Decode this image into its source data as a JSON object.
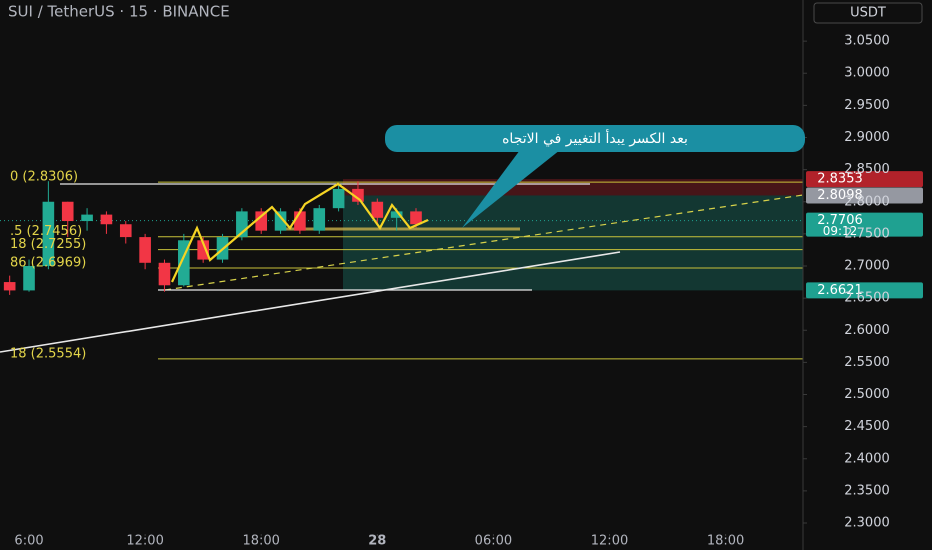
{
  "chart_data": {
    "type": "candlestick",
    "title": "SUI / TetherUS · 15 · BINANCE",
    "currency": "USDT",
    "annotation": "بعد الكسر يبدأ التغيير في الاتجاه",
    "x": [
      5,
      6,
      7,
      8,
      9,
      10,
      11,
      12,
      13,
      14,
      15,
      16,
      17,
      18,
      19,
      20,
      21,
      22,
      23,
      24,
      25,
      26
    ],
    "open": [
      2.675,
      2.662,
      2.7,
      2.8,
      2.77,
      2.78,
      2.765,
      2.745,
      2.705,
      2.67,
      2.74,
      2.71,
      2.745,
      2.785,
      2.755,
      2.785,
      2.755,
      2.79,
      2.82,
      2.8,
      2.775,
      2.785
    ],
    "high": [
      2.685,
      2.71,
      2.832,
      2.8,
      2.79,
      2.785,
      2.77,
      2.75,
      2.71,
      2.75,
      2.745,
      2.75,
      2.79,
      2.79,
      2.79,
      2.79,
      2.795,
      2.825,
      2.832,
      2.805,
      2.79,
      2.79
    ],
    "low": [
      2.655,
      2.66,
      2.695,
      2.745,
      2.755,
      2.75,
      2.735,
      2.695,
      2.66,
      2.668,
      2.705,
      2.705,
      2.74,
      2.75,
      2.75,
      2.75,
      2.75,
      2.785,
      2.795,
      2.765,
      2.755,
      2.76
    ],
    "close": [
      2.662,
      2.7,
      2.8,
      2.77,
      2.78,
      2.765,
      2.745,
      2.705,
      2.67,
      2.74,
      2.71,
      2.745,
      2.785,
      2.755,
      2.785,
      2.755,
      2.79,
      2.82,
      2.8,
      2.775,
      2.785,
      2.765
    ],
    "up_color": "#22ab94",
    "down_color": "#f23645",
    "xlim": [
      4.5,
      46
    ],
    "xticks": [
      {
        "value": 6,
        "label": "6:00"
      },
      {
        "value": 12,
        "label": "12:00"
      },
      {
        "value": 18,
        "label": "18:00"
      },
      {
        "value": 24,
        "label": "28"
      },
      {
        "value": 30,
        "label": "06:00"
      },
      {
        "value": 36,
        "label": "12:00"
      },
      {
        "value": 42,
        "label": "18:00"
      }
    ],
    "ylim": [
      2.258,
      3.114
    ],
    "yticks": [
      {
        "value": 2.3,
        "label": "2.3000"
      },
      {
        "value": 2.35,
        "label": "2.3500"
      },
      {
        "value": 2.4,
        "label": "2.4000"
      },
      {
        "value": 2.45,
        "label": "2.4500"
      },
      {
        "value": 2.5,
        "label": "2.5000"
      },
      {
        "value": 2.55,
        "label": "2.5500"
      },
      {
        "value": 2.6,
        "label": "2.6000"
      },
      {
        "value": 2.65,
        "label": "2.6500"
      },
      {
        "value": 2.7,
        "label": "2.7000"
      },
      {
        "value": 2.75,
        "label": "2.7500"
      },
      {
        "value": 2.8,
        "label": "2.8000"
      },
      {
        "value": 2.85,
        "label": "2.8500"
      },
      {
        "value": 2.9,
        "label": "2.9000"
      },
      {
        "value": 2.95,
        "label": "2.9500"
      },
      {
        "value": 3.0,
        "label": "3.0000"
      },
      {
        "value": 3.05,
        "label": "3.0500"
      }
    ],
    "fib_levels": [
      {
        "value": 2.8306,
        "label": "0 (2.8306)"
      },
      {
        "value": 2.7456,
        "label": ".5 (2.7456)"
      },
      {
        "value": 2.7255,
        "label": "18 (2.7255)"
      },
      {
        "value": 2.6969,
        "label": "86 (2.6969)"
      },
      {
        "value": 2.5554,
        "label": "18 (2.5554)"
      }
    ],
    "position": {
      "stop": 2.8353,
      "entry": 2.8098,
      "target": 2.6621
    },
    "price_tags": [
      {
        "value": 2.8353,
        "color": "#b2222a"
      },
      {
        "value": 2.8098,
        "color": "#9598a1"
      },
      {
        "value": 2.7706,
        "color": "#1fa191",
        "sublabel": "09:12"
      },
      {
        "value": 2.6621,
        "color": "#1fa191"
      }
    ]
  }
}
